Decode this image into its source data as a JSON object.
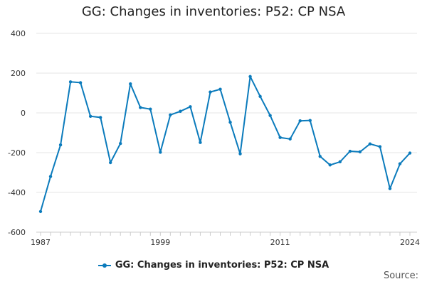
{
  "title": "GG: Changes in inventories: P52: CP NSA",
  "legend_label": "GG: Changes in inventories: P52: CP NSA",
  "source_label": "Source:",
  "colors": {
    "series": "#0b7bbc",
    "grid": "#e6e6e6",
    "axis": "#cccccc"
  },
  "chart_data": {
    "type": "line",
    "title": "GG: Changes in inventories: P52: CP NSA",
    "xlabel": "",
    "ylabel": "",
    "xlim": [
      1987,
      2024
    ],
    "ylim": [
      -600,
      400
    ],
    "yticks": [
      400,
      200,
      0,
      -200,
      -400,
      -600
    ],
    "xtick_labels": [
      "1987",
      "1999",
      "2011",
      "2024"
    ],
    "grid": true,
    "legend": "bottom",
    "series": [
      {
        "name": "GG: Changes in inventories: P52: CP NSA",
        "x": [
          1987,
          1988,
          1989,
          1990,
          1991,
          1992,
          1993,
          1994,
          1995,
          1996,
          1997,
          1998,
          1999,
          2000,
          2001,
          2002,
          2003,
          2004,
          2005,
          2006,
          2007,
          2008,
          2009,
          2010,
          2011,
          2012,
          2013,
          2014,
          2015,
          2016,
          2017,
          2018,
          2019,
          2020,
          2021,
          2022,
          2023,
          2024
        ],
        "values": [
          -496,
          -320,
          -161,
          156,
          152,
          -17,
          -23,
          -250,
          -154,
          146,
          27,
          19,
          -198,
          -10,
          8,
          31,
          -149,
          105,
          119,
          -47,
          -206,
          183,
          83,
          -13,
          -124,
          -131,
          -40,
          -38,
          -219,
          -262,
          -246,
          -193,
          -196,
          -156,
          -170,
          -381,
          -256,
          -202
        ]
      }
    ]
  }
}
